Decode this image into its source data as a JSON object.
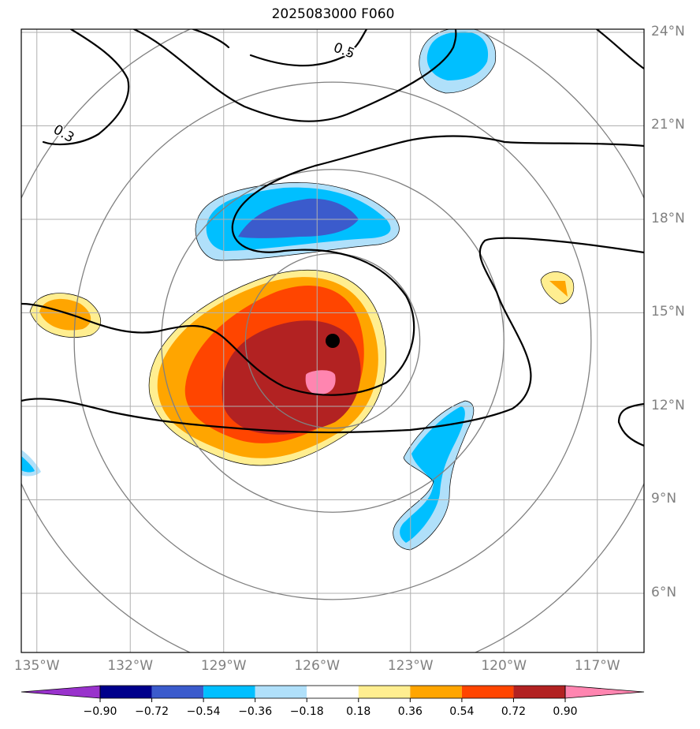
{
  "title": "2025083000 F060",
  "chart_data": {
    "type": "contour-map",
    "title": "2025083000 F060",
    "projection": "lat-lon",
    "xlim": [
      -135.5,
      -115.5
    ],
    "ylim": [
      4.1,
      24.1
    ],
    "x_ticks": [
      -135,
      -132,
      -129,
      -126,
      -123,
      -120,
      -117
    ],
    "x_tick_labels": [
      "135°W",
      "132°W",
      "129°W",
      "126°W",
      "123°W",
      "120°W",
      "117°W"
    ],
    "y_ticks": [
      24,
      21,
      18,
      15,
      12,
      9,
      6
    ],
    "y_tick_labels": [
      "24°N",
      "21°N",
      "18°N",
      "15°N",
      "12°N",
      "9°N",
      "6°N"
    ],
    "grid": true,
    "center": {
      "lon": -125.5,
      "lat": 14.1
    },
    "range_rings_deg": [
      2.8,
      5.5,
      8.3,
      11.0
    ],
    "contour_labels": [
      {
        "text": "0.5",
        "lon": -125.5,
        "lat": 23.4
      },
      {
        "text": "0.3",
        "lon": -134.5,
        "lat": 20.8
      }
    ],
    "colorbar": {
      "levels": [
        "−0.90",
        "−0.72",
        "−0.54",
        "−0.36",
        "−0.18",
        "0.18",
        "0.36",
        "0.54",
        "0.72",
        "0.90"
      ],
      "colors": [
        "#9932cc",
        "#00008b",
        "#3b5bcc",
        "#00bfff",
        "#b0e0fa",
        "#ffffff",
        "#ffee90",
        "#ffa500",
        "#ff4500",
        "#b22222",
        "#ff85b0"
      ],
      "extend": "both"
    }
  },
  "colors": {
    "ring": "#808080",
    "grid": "#b0b0b0",
    "contour": "#000000"
  }
}
